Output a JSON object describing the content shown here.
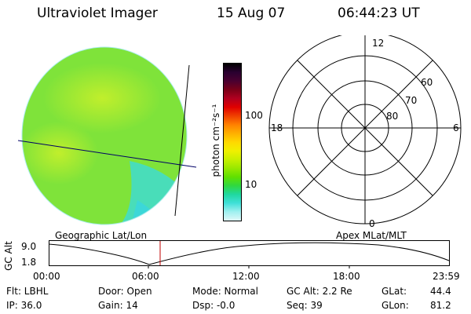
{
  "header": {
    "instrument": "Ultraviolet Imager",
    "date": "15 Aug 07",
    "time": "06:44:23 UT"
  },
  "colorbar": {
    "label": "photon cm⁻²s⁻¹",
    "ticks": [
      "100",
      "10"
    ],
    "colors": [
      "#000000",
      "#2a0030",
      "#4a0030",
      "#7a0018",
      "#b00020",
      "#e00000",
      "#f04000",
      "#ff8000",
      "#ffb000",
      "#ffd800",
      "#f0f000",
      "#c8f000",
      "#98e800",
      "#60e000",
      "#30d840",
      "#20d8a0",
      "#40e0d8",
      "#a0f0f0",
      "#e0f8f8"
    ]
  },
  "earth_image": {
    "label": "Geographic Lat/Lon",
    "colors": {
      "main": "#7fe33a",
      "bright": "#b9ee2a",
      "cyan": "#40dcd0",
      "edge": "#c8f4f4"
    }
  },
  "polar_plot": {
    "label": "Apex MLat/MLT",
    "mlt_labels": {
      "top": "12",
      "left": "18",
      "right": "6",
      "bottom": "0"
    },
    "lat_labels": [
      "60",
      "70",
      "80"
    ]
  },
  "altitude_plot": {
    "ylabel": "GC Alt",
    "y_ticks": [
      "9.0",
      "1.8"
    ],
    "x_ticks": [
      "00:00",
      "06:00",
      "12:00",
      "18:00",
      "23:59"
    ],
    "current_time_marker_color": "#c00000"
  },
  "info": {
    "flt": "Flt: LBHL",
    "ip": "IP: 36.0",
    "door": "Door: Open",
    "gain": "Gain: 14",
    "mode": "Mode: Normal",
    "dsp": "Dsp:   -0.0",
    "gc_alt": "GC Alt: 2.2 Re",
    "seq": "Seq: 39",
    "glat_label": "GLat:",
    "glat_value": "44.4",
    "glon_label": "GLon:",
    "glon_value": "81.2"
  }
}
